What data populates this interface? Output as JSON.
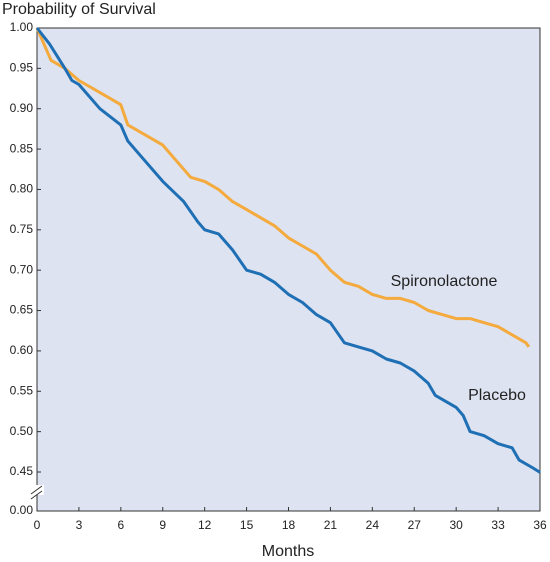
{
  "chart_data": {
    "type": "line",
    "title": "Probability of Survival",
    "x_label": "Months",
    "xlim": [
      0,
      36
    ],
    "xticks": [
      0,
      3,
      6,
      9,
      12,
      15,
      18,
      21,
      24,
      27,
      30,
      33,
      36
    ],
    "ylim": [
      0,
      1
    ],
    "y_break": [
      0,
      0.45
    ],
    "yticks": [
      {
        "value": 0,
        "label": "0.00"
      },
      {
        "value": 0.45,
        "label": "0.45"
      },
      {
        "value": 0.5,
        "label": "0.50"
      },
      {
        "value": 0.55,
        "label": "0.55"
      },
      {
        "value": 0.6,
        "label": "0.60"
      },
      {
        "value": 0.65,
        "label": "0.65"
      },
      {
        "value": 0.7,
        "label": "0.70"
      },
      {
        "value": 0.75,
        "label": "0.75"
      },
      {
        "value": 0.8,
        "label": "0.80"
      },
      {
        "value": 0.85,
        "label": "0.85"
      },
      {
        "value": 0.9,
        "label": "0.90"
      },
      {
        "value": 0.95,
        "label": "0.95"
      },
      {
        "value": 1,
        "label": "1.00"
      }
    ],
    "series": [
      {
        "name": "Spironolactone",
        "color": "#f4aa3c",
        "x": [
          0,
          0.5,
          1,
          2,
          3,
          4,
          5,
          6,
          6.5,
          7.5,
          9,
          10,
          11,
          12,
          13,
          14,
          15,
          16,
          17,
          18,
          19,
          20,
          21,
          22,
          23,
          24,
          25,
          26,
          27,
          28,
          29,
          30,
          31,
          32,
          33,
          34,
          35,
          35.2
        ],
        "values": [
          1.0,
          0.98,
          0.96,
          0.95,
          0.935,
          0.925,
          0.915,
          0.905,
          0.88,
          0.87,
          0.855,
          0.835,
          0.815,
          0.81,
          0.8,
          0.785,
          0.775,
          0.765,
          0.755,
          0.74,
          0.73,
          0.72,
          0.7,
          0.685,
          0.68,
          0.67,
          0.665,
          0.665,
          0.66,
          0.65,
          0.645,
          0.64,
          0.64,
          0.635,
          0.63,
          0.62,
          0.61,
          0.605
        ]
      },
      {
        "name": "Placebo",
        "color": "#1f6fb5",
        "x": [
          0,
          0.9,
          2,
          2.5,
          3,
          4.5,
          6,
          6.5,
          7.5,
          9,
          10.5,
          11.5,
          12,
          13,
          14,
          15,
          16,
          17,
          18,
          19,
          20,
          21,
          22,
          23,
          24,
          25,
          26,
          27,
          28,
          28.5,
          30,
          30.5,
          31,
          32,
          33,
          34,
          34.5,
          35.5,
          36
        ],
        "values": [
          1.0,
          0.98,
          0.95,
          0.935,
          0.93,
          0.9,
          0.88,
          0.86,
          0.84,
          0.81,
          0.785,
          0.76,
          0.75,
          0.745,
          0.725,
          0.7,
          0.695,
          0.685,
          0.67,
          0.66,
          0.645,
          0.635,
          0.61,
          0.605,
          0.6,
          0.59,
          0.585,
          0.575,
          0.56,
          0.545,
          0.53,
          0.52,
          0.5,
          0.495,
          0.485,
          0.48,
          0.465,
          0.455,
          0.445
        ]
      }
    ]
  }
}
